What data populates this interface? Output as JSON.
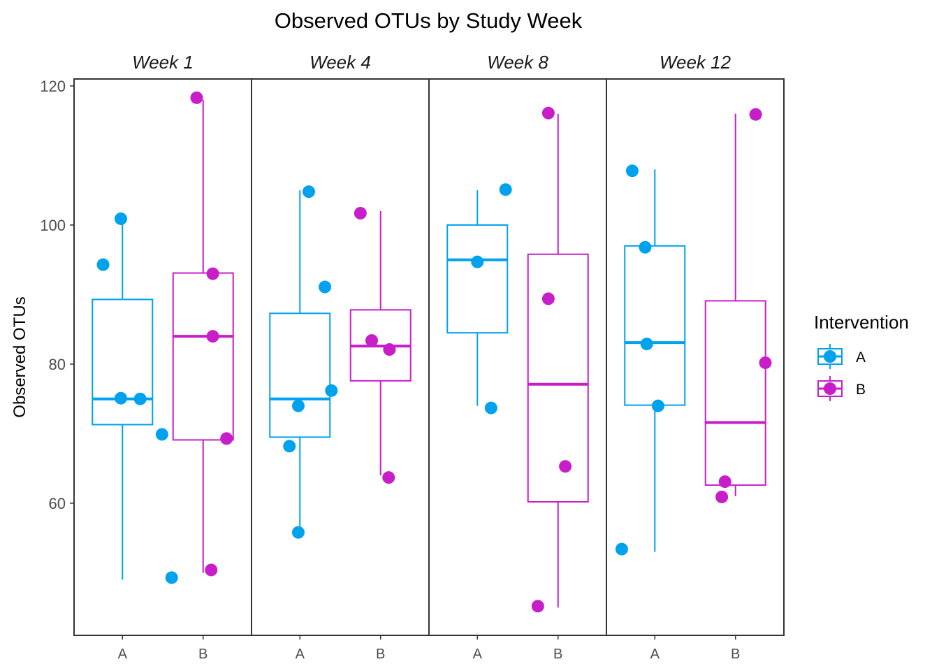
{
  "chart_data": {
    "type": "box",
    "title": "Observed OTUs by Study Week",
    "xlabel": "",
    "ylabel": "Observed OTUs",
    "ylim": [
      41,
      121
    ],
    "yticks": [
      60,
      80,
      100,
      120
    ],
    "categories": [
      "A",
      "B"
    ],
    "facets": [
      {
        "label": "Week 1",
        "groups": [
          {
            "name": "A",
            "color": "#00A2ED",
            "min": 49,
            "q1": 71.3,
            "median": 75,
            "q3": 89.3,
            "max": 101,
            "points": [
              {
                "x": 0.76,
                "y": 94.3
              },
              {
                "x": 0.98,
                "y": 75.1
              },
              {
                "x": 1.22,
                "y": 75.0
              },
              {
                "x": 1.49,
                "y": 69.9
              },
              {
                "x": 1.61,
                "y": 49.3
              },
              {
                "x": 0.98,
                "y": 100.9
              }
            ]
          },
          {
            "name": "B",
            "color": "#C71EC9",
            "min": 50,
            "q1": 69.1,
            "median": 84,
            "q3": 93.1,
            "max": 118,
            "points": [
              {
                "x": 1.92,
                "y": 118.3
              },
              {
                "x": 2.12,
                "y": 93.0
              },
              {
                "x": 2.12,
                "y": 84.0
              },
              {
                "x": 2.29,
                "y": 69.3
              },
              {
                "x": 2.1,
                "y": 50.4
              }
            ]
          }
        ]
      },
      {
        "label": "Week 4",
        "groups": [
          {
            "name": "A",
            "color": "#00A2ED",
            "min": 56,
            "q1": 69.5,
            "median": 75,
            "q3": 87.3,
            "max": 105,
            "points": [
              {
                "x": 1.11,
                "y": 104.8
              },
              {
                "x": 1.31,
                "y": 91.1
              },
              {
                "x": 1.39,
                "y": 76.2
              },
              {
                "x": 0.98,
                "y": 74.0
              },
              {
                "x": 0.87,
                "y": 68.2
              },
              {
                "x": 0.98,
                "y": 55.8
              }
            ]
          },
          {
            "name": "B",
            "color": "#C71EC9",
            "min": 64,
            "q1": 77.6,
            "median": 82.6,
            "q3": 87.8,
            "max": 102,
            "points": [
              {
                "x": 1.75,
                "y": 101.7
              },
              {
                "x": 1.89,
                "y": 83.4
              },
              {
                "x": 2.11,
                "y": 82.1
              },
              {
                "x": 2.1,
                "y": 63.7
              }
            ]
          }
        ]
      },
      {
        "label": "Week 8",
        "groups": [
          {
            "name": "A",
            "color": "#00A2ED",
            "min": 74,
            "q1": 84.5,
            "median": 95,
            "q3": 100,
            "max": 105,
            "points": [
              {
                "x": 1.35,
                "y": 105.1
              },
              {
                "x": 1.0,
                "y": 94.7
              },
              {
                "x": 1.17,
                "y": 73.7
              }
            ]
          },
          {
            "name": "B",
            "color": "#C71EC9",
            "min": 45,
            "q1": 60.2,
            "median": 77.1,
            "q3": 95.8,
            "max": 116,
            "points": [
              {
                "x": 1.88,
                "y": 116.1
              },
              {
                "x": 1.88,
                "y": 89.4
              },
              {
                "x": 2.09,
                "y": 65.3
              },
              {
                "x": 1.75,
                "y": 45.2
              }
            ]
          }
        ]
      },
      {
        "label": "Week 12",
        "groups": [
          {
            "name": "A",
            "color": "#00A2ED",
            "min": 53,
            "q1": 74.1,
            "median": 83.1,
            "q3": 97,
            "max": 108,
            "points": [
              {
                "x": 0.72,
                "y": 107.8
              },
              {
                "x": 0.88,
                "y": 96.8
              },
              {
                "x": 0.9,
                "y": 82.9
              },
              {
                "x": 1.04,
                "y": 74.0
              },
              {
                "x": 0.59,
                "y": 53.4
              }
            ]
          },
          {
            "name": "B",
            "color": "#C71EC9",
            "min": 61,
            "q1": 62.6,
            "median": 71.6,
            "q3": 89.1,
            "max": 116,
            "points": [
              {
                "x": 2.25,
                "y": 115.9
              },
              {
                "x": 2.37,
                "y": 80.2
              },
              {
                "x": 1.87,
                "y": 63.1
              },
              {
                "x": 1.83,
                "y": 60.9
              }
            ]
          }
        ]
      }
    ],
    "legend": {
      "title": "Intervention",
      "position": "right",
      "entries": [
        {
          "label": "A",
          "color": "#00A2ED"
        },
        {
          "label": "B",
          "color": "#C71EC9"
        }
      ]
    }
  }
}
